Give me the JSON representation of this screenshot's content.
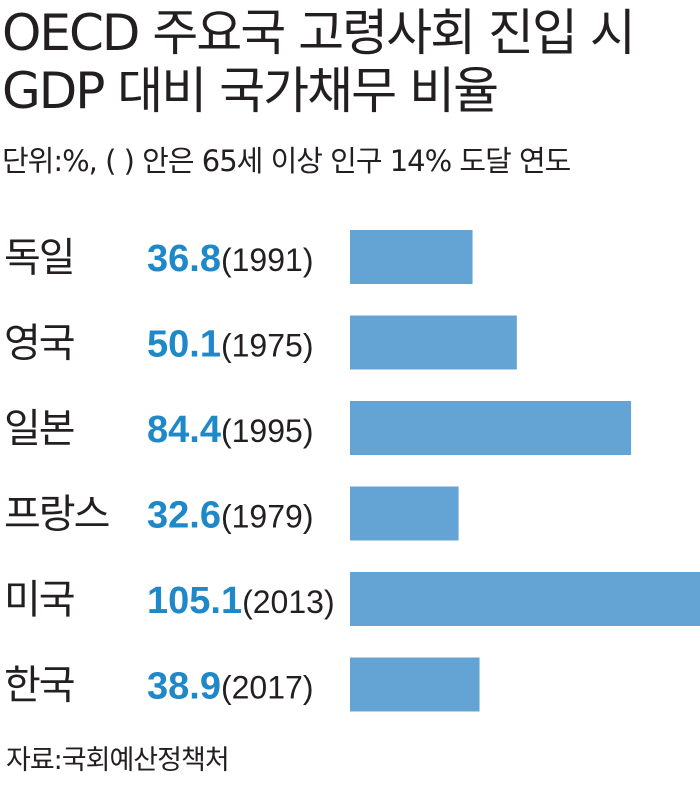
{
  "chart_data": {
    "type": "bar",
    "orientation": "horizontal",
    "title_lines": [
      "OECD 주요국 고령사회 진입 시",
      "GDP 대비 국가채무 비율"
    ],
    "subtitle": "단위:%, ( ) 안은 65세 이상 인구 14% 도달 연도",
    "source": "자료:국회예산정책처",
    "categories": [
      "독일",
      "영국",
      "일본",
      "프랑스",
      "미국",
      "한국"
    ],
    "values": [
      36.8,
      50.1,
      84.4,
      32.6,
      105.1,
      38.9
    ],
    "years": [
      "(1991)",
      "(1975)",
      "(1995)",
      "(1979)",
      "(2013)",
      "(2017)"
    ],
    "bar_color": "#64a4d4",
    "value_color": "#1e88c8"
  }
}
